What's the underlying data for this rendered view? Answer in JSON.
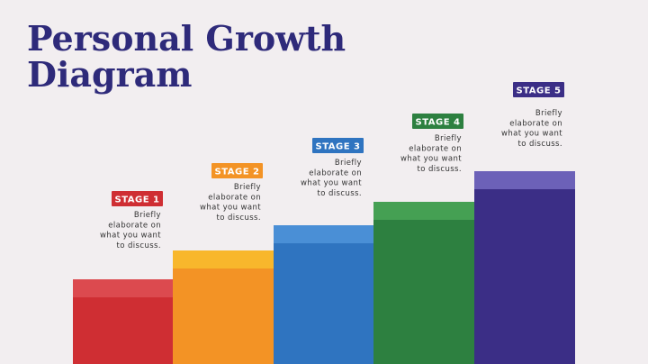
{
  "title": [
    "Personal Growth",
    "Diagram"
  ],
  "stages": [
    {
      "label": "STAGE 1",
      "description": [
        "Briefly",
        "elaborate on",
        "what you want",
        "to discuss."
      ]
    },
    {
      "label": "STAGE 2",
      "description": [
        "Briefly",
        "elaborate on",
        "what you want",
        "to discuss."
      ]
    },
    {
      "label": "STAGE 3",
      "description": [
        "Briefly",
        "elaborate on",
        "what you want",
        "to discuss."
      ]
    },
    {
      "label": "STAGE 4",
      "description": [
        "Briefly",
        "elaborate on",
        "what you want",
        "to discuss."
      ]
    },
    {
      "label": "STAGE 5",
      "description": [
        "Briefly",
        "elaborate on",
        "what you want",
        "to discuss."
      ]
    }
  ]
}
